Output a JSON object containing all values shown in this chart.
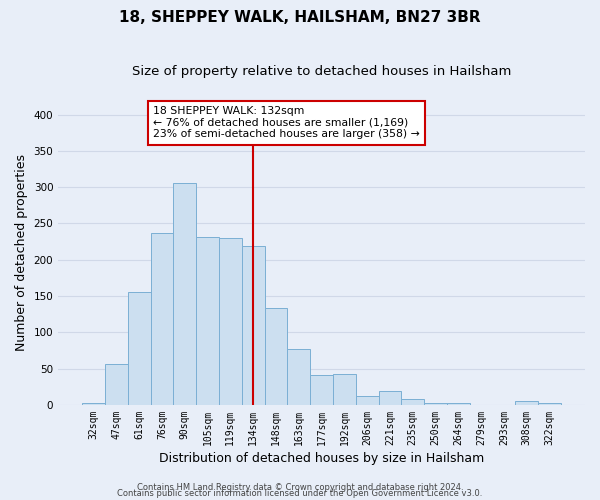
{
  "title": "18, SHEPPEY WALK, HAILSHAM, BN27 3BR",
  "subtitle": "Size of property relative to detached houses in Hailsham",
  "xlabel": "Distribution of detached houses by size in Hailsham",
  "ylabel": "Number of detached properties",
  "bar_labels": [
    "32sqm",
    "47sqm",
    "61sqm",
    "76sqm",
    "90sqm",
    "105sqm",
    "119sqm",
    "134sqm",
    "148sqm",
    "163sqm",
    "177sqm",
    "192sqm",
    "206sqm",
    "221sqm",
    "235sqm",
    "250sqm",
    "264sqm",
    "279sqm",
    "293sqm",
    "308sqm",
    "322sqm"
  ],
  "bar_values": [
    2,
    57,
    155,
    237,
    305,
    231,
    230,
    219,
    133,
    77,
    41,
    42,
    12,
    19,
    8,
    2,
    2,
    0,
    0,
    5,
    2
  ],
  "bar_color": "#ccdff0",
  "bar_edge_color": "#7bafd4",
  "background_color": "#e8eef8",
  "grid_color": "#d0d8e8",
  "vline_x": 7.0,
  "vline_color": "#cc0000",
  "annotation_title": "18 SHEPPEY WALK: 132sqm",
  "annotation_line1": "← 76% of detached houses are smaller (1,169)",
  "annotation_line2": "23% of semi-detached houses are larger (358) →",
  "annotation_box_color": "#ffffff",
  "annotation_box_edge": "#cc0000",
  "footer_line1": "Contains HM Land Registry data © Crown copyright and database right 2024.",
  "footer_line2": "Contains public sector information licensed under the Open Government Licence v3.0.",
  "ylim": [
    0,
    420
  ],
  "yticks": [
    0,
    50,
    100,
    150,
    200,
    250,
    300,
    350,
    400
  ],
  "title_fontsize": 11,
  "subtitle_fontsize": 9.5,
  "tick_fontsize": 7,
  "label_fontsize": 9,
  "footer_fontsize": 6
}
